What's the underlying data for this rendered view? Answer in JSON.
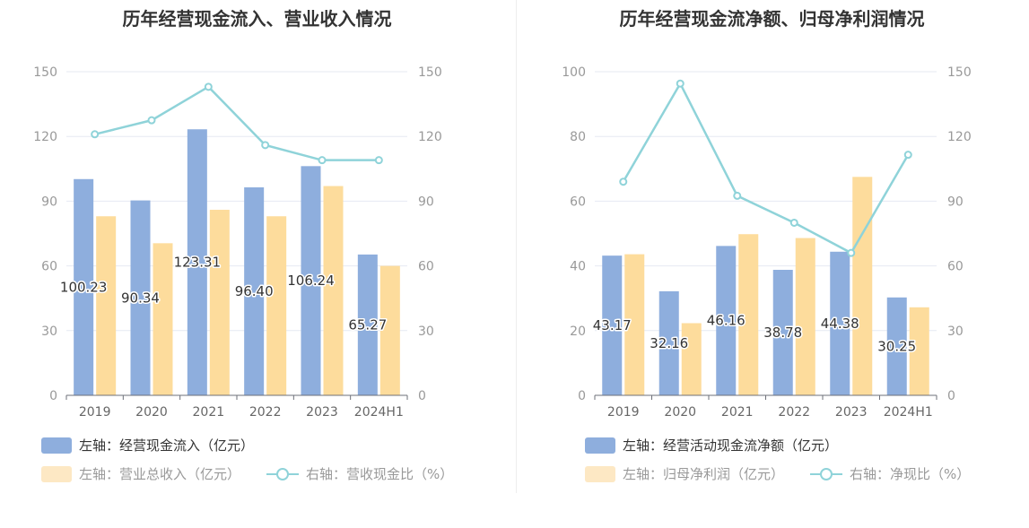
{
  "charts": [
    {
      "title": "历年经营现金流入、营业收入情况",
      "legend": {
        "bar1": "左轴：经营现金流入（亿元）",
        "bar2": "左轴：营业总收入（亿元）",
        "line": "右轴：营收现金比（%）"
      }
    },
    {
      "title": "历年经营现金流净额、归母净利润情况",
      "legend": {
        "bar1": "左轴：经营活动现金流净额（亿元）",
        "bar2": "左轴：归母净利润（亿元）",
        "line": "右轴：净现比（%）"
      }
    }
  ],
  "chart_data": [
    {
      "type": "bar",
      "categories": [
        "2019",
        "2020",
        "2021",
        "2022",
        "2023",
        "2024H1"
      ],
      "series": [
        {
          "name": "左轴：经营现金流入（亿元）",
          "axis": "left",
          "kind": "bar",
          "color": "#8eaedd",
          "values": [
            100.23,
            90.34,
            123.31,
            96.4,
            106.24,
            65.27
          ],
          "labels": [
            "100.23",
            "90.34",
            "123.31",
            "96.40",
            "106.24",
            "65.27"
          ]
        },
        {
          "name": "左轴：营业总收入（亿元）",
          "axis": "left",
          "kind": "bar",
          "color": "#fddc9c",
          "values": [
            83,
            70.5,
            86,
            83,
            97,
            60
          ]
        },
        {
          "name": "右轴：营收现金比（%）",
          "axis": "right",
          "kind": "line",
          "color": "#8fd3d9",
          "values": [
            121,
            127.5,
            143,
            116,
            109,
            109
          ]
        }
      ],
      "left_axis": {
        "ticks": [
          "0",
          "30",
          "60",
          "90",
          "120",
          "150"
        ],
        "ylim": [
          0,
          150
        ]
      },
      "right_axis": {
        "ticks": [
          "0",
          "30",
          "60",
          "90",
          "120",
          "150"
        ],
        "ylim": [
          0,
          150
        ]
      },
      "grid": true,
      "legend_position": "bottom-left"
    },
    {
      "type": "bar",
      "categories": [
        "2019",
        "2020",
        "2021",
        "2022",
        "2023",
        "2024H1"
      ],
      "series": [
        {
          "name": "左轴：经营活动现金流净额（亿元）",
          "axis": "left",
          "kind": "bar",
          "color": "#8eaedd",
          "values": [
            43.17,
            32.16,
            46.16,
            38.78,
            44.38,
            30.25
          ],
          "labels": [
            "43.17",
            "32.16",
            "46.16",
            "38.78",
            "44.38",
            "30.25"
          ]
        },
        {
          "name": "左轴：归母净利润（亿元）",
          "axis": "left",
          "kind": "bar",
          "color": "#fddc9c",
          "values": [
            43.6,
            22.3,
            49.8,
            48.6,
            67.5,
            27.2
          ]
        },
        {
          "name": "右轴：净现比（%）",
          "axis": "right",
          "kind": "line",
          "color": "#8fd3d9",
          "values": [
            99,
            144.5,
            92.5,
            80,
            66,
            111.5
          ]
        }
      ],
      "left_axis": {
        "ticks": [
          "0",
          "20",
          "40",
          "60",
          "80",
          "100"
        ],
        "ylim": [
          0,
          100
        ]
      },
      "right_axis": {
        "ticks": [
          "0",
          "30",
          "60",
          "90",
          "120",
          "150"
        ],
        "ylim": [
          0,
          150
        ]
      },
      "grid": true,
      "legend_position": "bottom-left"
    }
  ]
}
